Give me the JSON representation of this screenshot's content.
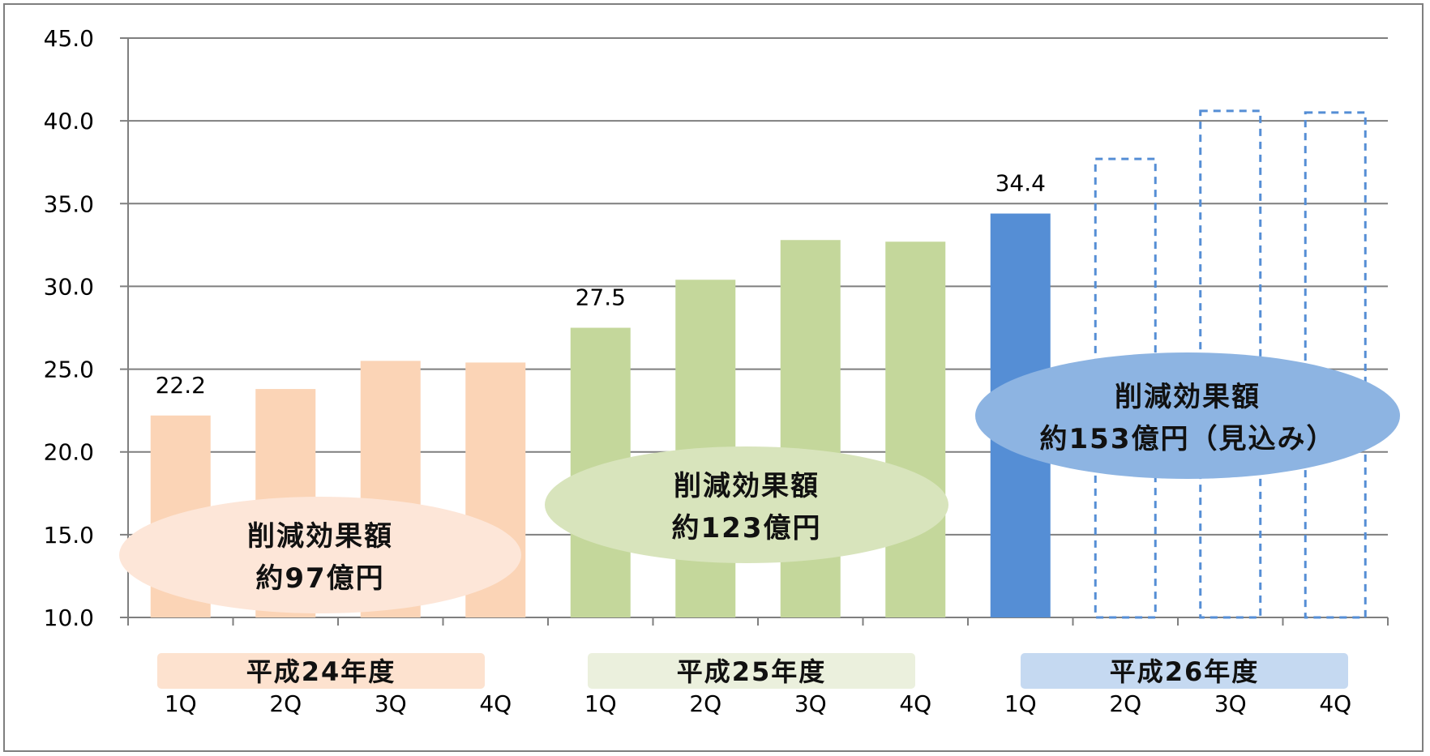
{
  "chart_data": {
    "type": "bar",
    "ylim": [
      10,
      45
    ],
    "yticks": [
      "10.0",
      "15.0",
      "20.0",
      "25.0",
      "30.0",
      "35.0",
      "40.0",
      "45.0"
    ],
    "grid": true,
    "categories": [
      "1Q",
      "2Q",
      "3Q",
      "4Q",
      "1Q",
      "2Q",
      "3Q",
      "4Q",
      "1Q",
      "2Q",
      "3Q",
      "4Q"
    ],
    "values": [
      22.2,
      23.8,
      25.5,
      25.4,
      27.5,
      30.4,
      32.8,
      32.7,
      34.4,
      37.7,
      40.6,
      40.5
    ],
    "bar_styles": [
      "fy24",
      "fy24",
      "fy24",
      "fy24",
      "fy25",
      "fy25",
      "fy25",
      "fy25",
      "fy26",
      "fy26-forecast",
      "fy26-forecast",
      "fy26-forecast"
    ],
    "data_labels": [
      {
        "index": 0,
        "text": "22.2"
      },
      {
        "index": 4,
        "text": "27.5"
      },
      {
        "index": 8,
        "text": "34.4"
      }
    ],
    "groups": [
      {
        "label": "平成24年度",
        "start": 0,
        "end": 3,
        "color": "#fbd4b6",
        "band_color": "#fde2cf",
        "callout": {
          "line1": "削減効果額",
          "line2": "約97億円",
          "color": "#fde6d8"
        }
      },
      {
        "label": "平成25年度",
        "start": 4,
        "end": 7,
        "color": "#c4d79b",
        "band_color": "#ebf0dd",
        "callout": {
          "line1": "削減効果額",
          "line2": "約123億円",
          "color": "#d8e4bc"
        }
      },
      {
        "label": "平成26年度",
        "start": 8,
        "end": 11,
        "color": "#558ed5",
        "band_color": "#c5d9f1",
        "callout": {
          "line1": "削減効果額",
          "line2": "約153億円（見込み）",
          "color": "#8db4e2"
        }
      }
    ],
    "colors": {
      "fy24": "#fbd4b6",
      "fy25": "#c4d79b",
      "fy26": "#558ed5",
      "fy26-forecast": "#558ed5",
      "grid": "#7f7f7f",
      "frame": "#7f7f7f"
    }
  }
}
